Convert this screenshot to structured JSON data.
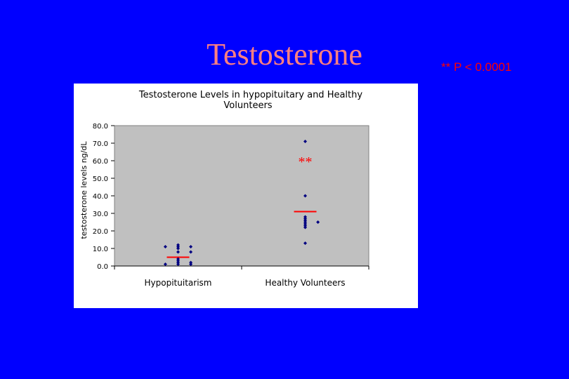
{
  "slide": {
    "title": "Testosterone",
    "pvalue_note": "** P < 0.0001"
  },
  "chart_data": {
    "type": "scatter",
    "title_lines": [
      "Testosterone Levels in hypopituitary and Healthy",
      "Volunteers"
    ],
    "xlabel": "",
    "ylabel": "testosterone levels ng/dL",
    "categories": [
      "Hypopituitarism",
      "Healthy Volunteers"
    ],
    "ylim": [
      0,
      80
    ],
    "yticks": [
      0,
      10,
      20,
      30,
      40,
      50,
      60,
      70,
      80
    ],
    "ytick_labels": [
      "0.0",
      "10.0",
      "20.0",
      "30.0",
      "40.0",
      "50.0",
      "60.0",
      "70.0",
      "80.0"
    ],
    "grid": false,
    "legend": "none",
    "series": [
      {
        "points": [
          {
            "category": 0,
            "offset": -0.1,
            "y": 11
          },
          {
            "category": 0,
            "offset": 0,
            "y": 12
          },
          {
            "category": 0,
            "offset": 0,
            "y": 11
          },
          {
            "category": 0,
            "offset": 0,
            "y": 10
          },
          {
            "category": 0,
            "offset": 0.1,
            "y": 11
          },
          {
            "category": 0,
            "offset": 0.1,
            "y": 8
          },
          {
            "category": 0,
            "offset": 0,
            "y": 8
          },
          {
            "category": 0,
            "offset": 0,
            "y": 4
          },
          {
            "category": 0,
            "offset": 0,
            "y": 3
          },
          {
            "category": 0,
            "offset": 0,
            "y": 2
          },
          {
            "category": 0,
            "offset": 0,
            "y": 1
          },
          {
            "category": 0,
            "offset": -0.1,
            "y": 1
          },
          {
            "category": 0,
            "offset": 0.1,
            "y": 1
          },
          {
            "category": 0,
            "offset": 0.1,
            "y": 2
          },
          {
            "category": 1,
            "offset": 0,
            "y": 71
          },
          {
            "category": 1,
            "offset": 0,
            "y": 40
          },
          {
            "category": 1,
            "offset": 0,
            "y": 28
          },
          {
            "category": 1,
            "offset": 0,
            "y": 27
          },
          {
            "category": 1,
            "offset": 0,
            "y": 26
          },
          {
            "category": 1,
            "offset": 0,
            "y": 25
          },
          {
            "category": 1,
            "offset": 0,
            "y": 24
          },
          {
            "category": 1,
            "offset": 0,
            "y": 23
          },
          {
            "category": 1,
            "offset": 0,
            "y": 22
          },
          {
            "category": 1,
            "offset": 0.1,
            "y": 25
          },
          {
            "category": 1,
            "offset": 0,
            "y": 13
          }
        ]
      }
    ],
    "means": [
      {
        "category": 0,
        "y": 5
      },
      {
        "category": 1,
        "y": 31
      }
    ],
    "annotation": {
      "text": "**",
      "category": 1,
      "y": 60
    },
    "colors": {
      "plot_background": "#c0c0c0",
      "points": "#000080",
      "mean_line": "#ff0000",
      "annotation": "#ff0000"
    }
  }
}
